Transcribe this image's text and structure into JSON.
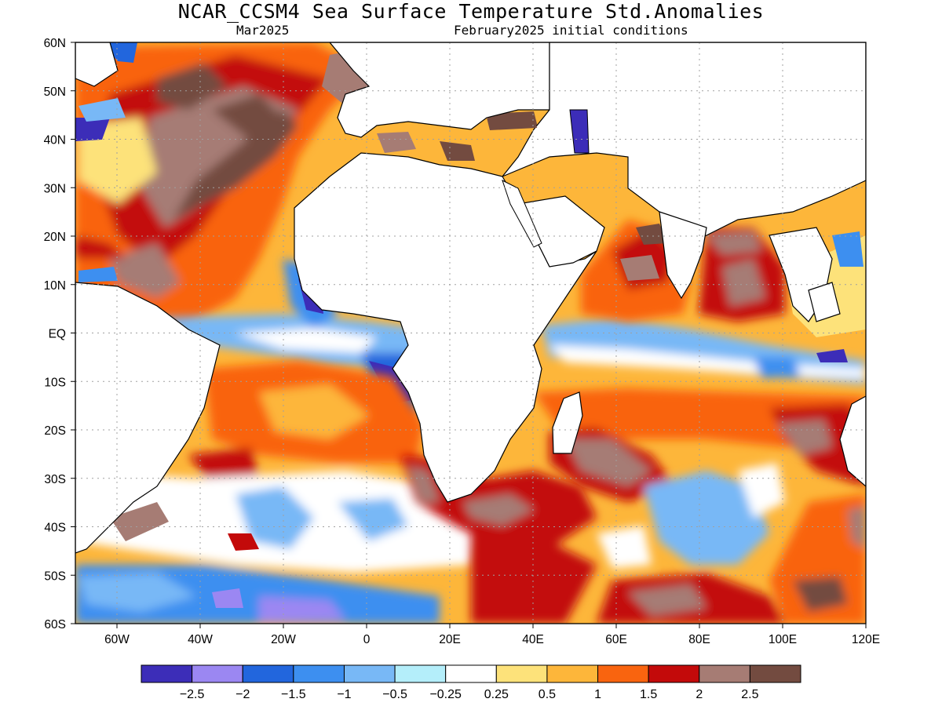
{
  "figure": {
    "title": "NCAR_CCSM4 Sea Surface Temperature Std.Anomalies",
    "subtitle_left": "Mar2025",
    "subtitle_right": "February2025 initial conditions"
  },
  "map": {
    "lon_range": [
      -70,
      120
    ],
    "lat_range": [
      -60,
      60
    ],
    "lon_ticks": [
      "60W",
      "40W",
      "20W",
      "0",
      "20E",
      "40E",
      "60E",
      "80E",
      "100E",
      "120E"
    ],
    "lat_ticks": [
      "60N",
      "50N",
      "40N",
      "30N",
      "20N",
      "10N",
      "EQ",
      "10S",
      "20S",
      "30S",
      "40S",
      "50S",
      "60S"
    ],
    "grid": "dotted"
  },
  "colorbar": {
    "labels": [
      "-2.5",
      "-2",
      "-1.5",
      "-1",
      "-0.5",
      "-0.25",
      "0.25",
      "0.5",
      "1",
      "1.5",
      "2",
      "2.5"
    ],
    "colors": [
      "#3c2db8",
      "#9b87f2",
      "#2266dd",
      "#3d8ff0",
      "#78b8f6",
      "#b4eefa",
      "#ffffff",
      "#fde27a",
      "#fdb63a",
      "#f9640f",
      "#c30a0a",
      "#a67c74",
      "#734b40"
    ]
  }
}
